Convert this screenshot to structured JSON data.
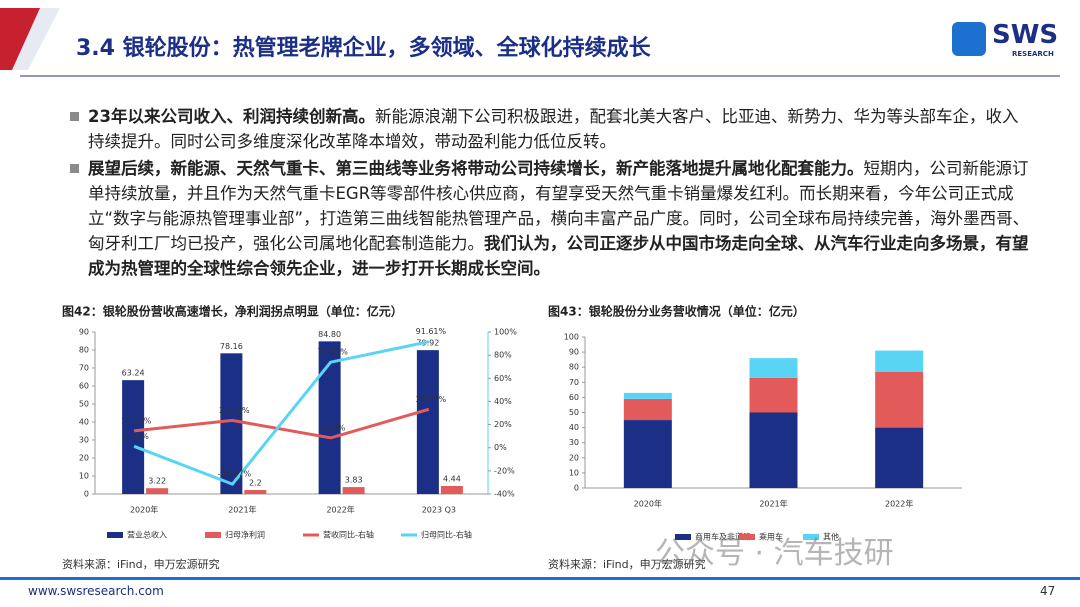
{
  "header": {
    "title": "3.4 银轮股份：热管理老牌企业，多领域、全球化持续成长",
    "logo": "SWS",
    "logo_sub": "RESEARCH"
  },
  "bullets": [
    {
      "runs": [
        {
          "text": "23年以来公司收入、利润持续创新高。",
          "bold": true
        },
        {
          "text": "新能源浪潮下公司积极跟进，配套北美大客户、比亚迪、新势力、华为等头部车企，收入持续提升。同时公司多维度深化改革降本增效，带动盈利能力低位反转。",
          "bold": false
        }
      ]
    },
    {
      "runs": [
        {
          "text": "展望后续，新能源、天然气重卡、第三曲线等业务将带动公司持续增长，新产能落地提升属地化配套能力。",
          "bold": true
        },
        {
          "text": "短期内，公司新能源订单持续放量，并且作为天然气重卡EGR等零部件核心供应商，有望享受天然气重卡销量爆发红利。而长期来看，今年公司正式成立“数字与能源热管理事业部”，打造第三曲线智能热管理产品，横向丰富产品广度。同时，公司全球布局持续完善，海外墨西哥、匈牙利工厂均已投产，强化公司属地化配套制造能力。",
          "bold": false
        },
        {
          "text": "我们认为，公司正逐步从中国市场走向全球、从汽车行业走向多场景，有望成为热管理的全球性综合领先企业，进一步打开长期成长空间。",
          "bold": true
        }
      ]
    }
  ],
  "chart_data": [
    {
      "type": "combo",
      "title": "图42：银轮股份营收高速增长，净利润拐点明显（单位：亿元）",
      "source": "资料来源：iFind，申万宏源研究",
      "categories": [
        "2020年",
        "2021年",
        "2022年",
        "2023 Q3"
      ],
      "series": [
        {
          "name": "营业总收入",
          "type": "bar",
          "color": "#1b2f86",
          "values": [
            63.24,
            78.16,
            84.8,
            79.92
          ],
          "value_labels": [
            "63.24",
            "78.16",
            "84.80",
            "79.92"
          ]
        },
        {
          "name": "归母净利润",
          "type": "bar",
          "color": "#e35a5a",
          "values": [
            3.22,
            2.2,
            3.83,
            4.44
          ]
        },
        {
          "name": "营收同比-右轴",
          "type": "line",
          "axis": "y2",
          "color": "#e35a5a",
          "values": [
            14.55,
            23.6,
            8.49,
            33.19
          ],
          "value_labels": [
            "14.55%",
            "23.60%",
            "8.49%",
            "33.19%"
          ]
        },
        {
          "name": "归母同比-右轴",
          "type": "line",
          "axis": "y2",
          "color": "#5ad4f5",
          "values": [
            1.23,
            -31.47,
            73.92,
            91.61
          ],
          "value_labels": [
            "1.23%",
            "-31.47%",
            "73.92%",
            "91.61%"
          ]
        }
      ],
      "ylim": [
        0,
        90
      ],
      "yticks": [
        0,
        10,
        20,
        30,
        40,
        50,
        60,
        70,
        80,
        90
      ],
      "y2lim": [
        -40,
        100
      ],
      "y2ticks": [
        {
          "value": -40,
          "label": "-40%"
        },
        {
          "value": -20,
          "label": "-20%"
        },
        {
          "value": 0,
          "label": "0%"
        },
        {
          "value": 20,
          "label": "20%"
        },
        {
          "value": 40,
          "label": "40%"
        },
        {
          "value": 60,
          "label": "60%"
        },
        {
          "value": 80,
          "label": "80%"
        },
        {
          "value": 100,
          "label": "100%"
        }
      ]
    },
    {
      "type": "stacked_bar",
      "title": "图43：银轮股份分业务营收情况（单位：亿元）",
      "source": "资料来源：iFind，申万宏源研究",
      "categories": [
        "2020年",
        "2021年",
        "2022年"
      ],
      "series": [
        {
          "name": "商用车及非道路",
          "color": "#1b2f86",
          "values": [
            45,
            50,
            40
          ]
        },
        {
          "name": "乘用车",
          "color": "#e35a5a",
          "values": [
            14,
            23,
            37
          ]
        },
        {
          "name": "其他",
          "color": "#5ad4f5",
          "values": [
            4,
            13,
            14
          ]
        }
      ],
      "ylim": [
        0,
        100
      ],
      "yticks": [
        0,
        10,
        20,
        30,
        40,
        50,
        60,
        70,
        80,
        90,
        100
      ]
    }
  ],
  "watermark": "公众号 · 汽车技研",
  "footer": {
    "url": "www.swsresearch.com",
    "page": "47"
  }
}
